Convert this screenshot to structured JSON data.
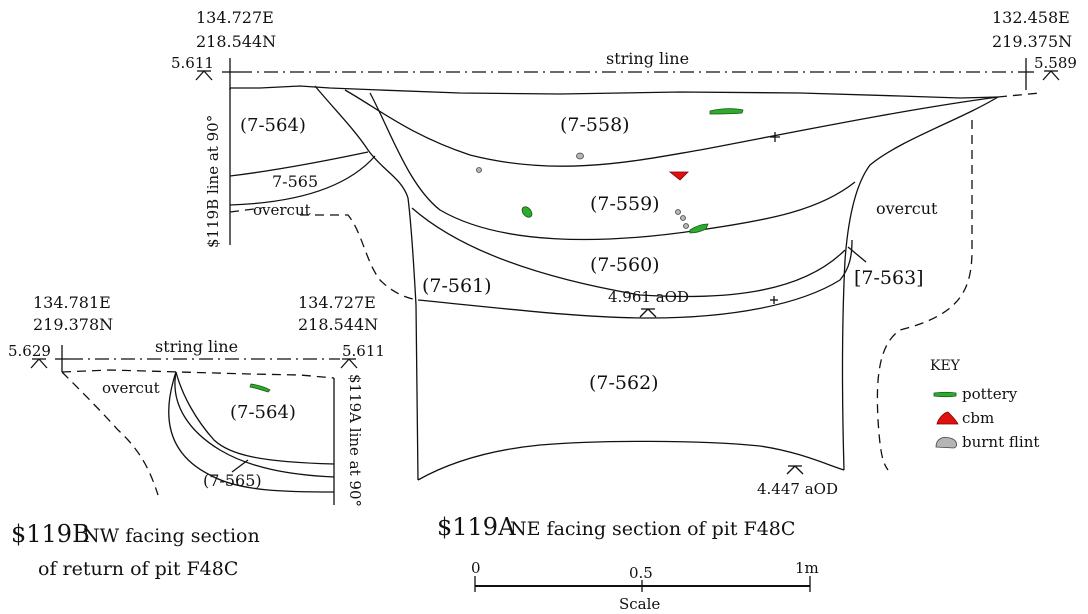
{
  "section_a": {
    "corner_left": {
      "easting": "134.727E",
      "northing": "218.544N",
      "level": "5.611"
    },
    "corner_right": {
      "easting": "132.458E",
      "northing": "219.375N",
      "level": "5.589"
    },
    "string_line": "string line",
    "line_at_90": "$119B line at 90°",
    "overcut_left": "overcut",
    "overcut_right": "overcut",
    "contexts": {
      "c564": "(7-564)",
      "c565": "7-565",
      "c558": "(7-558)",
      "c559": "(7-559)",
      "c560": "(7-560)",
      "c561": "(7-561)",
      "c562": "(7-562)",
      "c563": "[7-563]"
    },
    "level_upper": "4.961 aOD",
    "level_lower": "4.447 aOD",
    "title_code": "$119A",
    "title_text": "NE facing section of pit F48C"
  },
  "section_b": {
    "corner_left": {
      "easting": "134.781E",
      "northing": "219.378N",
      "level": "5.629"
    },
    "corner_right": {
      "easting": "134.727E",
      "northing": "218.544N",
      "level": "5.611"
    },
    "string_line": "string line",
    "line_at_90": "$119A line at 90°",
    "overcut": "overcut",
    "contexts": {
      "c564": "(7-564)",
      "c565": "(7-565)"
    },
    "title_code": "$119B",
    "title_line1": "NW facing section",
    "title_line2": "of return of pit F48C"
  },
  "key": {
    "title": "KEY",
    "items": [
      {
        "name": "pottery",
        "icon": "pottery-symbol",
        "color": "#2eaa2e"
      },
      {
        "name": "cbm",
        "icon": "cbm-symbol",
        "color": "#e01010"
      },
      {
        "name": "burnt flint",
        "icon": "burnt-flint-symbol",
        "color": "#b5b5b5"
      }
    ]
  },
  "scale": {
    "tick_0": "0",
    "tick_half": "0.5",
    "tick_1": "1m",
    "label": "Scale"
  }
}
